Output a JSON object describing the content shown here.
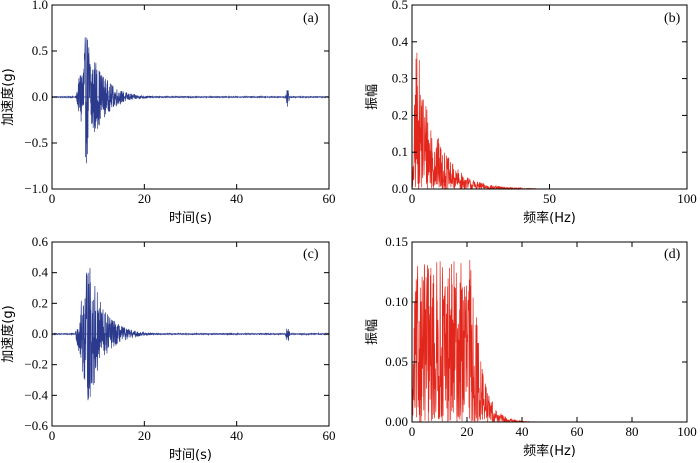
{
  "chart_data": [
    {
      "id": "a",
      "type": "line",
      "panel_label": "(a)",
      "xlabel": "时间(s)",
      "ylabel": "加速度(g)",
      "xlim": [
        0,
        60
      ],
      "ylim": [
        -1.0,
        1.0
      ],
      "xticks": [
        0,
        20,
        40,
        60
      ],
      "xtick_labels": [
        "0",
        "20",
        "40",
        "60"
      ],
      "yticks": [
        -1.0,
        -0.5,
        0.0,
        0.5,
        1.0
      ],
      "ytick_labels": [
        "−1.0",
        "−0.5",
        "0.0",
        "0.5",
        "1.0"
      ],
      "color": "#2b3a8c",
      "signal": {
        "start": 5.2,
        "peak_time": 7.5,
        "end": 22,
        "peak": 0.75,
        "trough": -0.74,
        "spike_time": 51.0,
        "spike_amp": 0.12,
        "duration": 60
      }
    },
    {
      "id": "b",
      "type": "area",
      "panel_label": "(b)",
      "xlabel": "频率(Hz)",
      "ylabel": "振幅",
      "xlim": [
        0,
        100
      ],
      "ylim": [
        0,
        0.5
      ],
      "xticks": [
        0,
        50,
        100
      ],
      "xtick_labels": [
        "0",
        "50",
        "100"
      ],
      "yticks": [
        0,
        0.1,
        0.2,
        0.3,
        0.4,
        0.5
      ],
      "ytick_labels": [
        "0.0",
        "0.1",
        "0.2",
        "0.3",
        "0.4",
        "0.5"
      ],
      "color": "#e3261b",
      "spectrum": {
        "peak": 0.41,
        "peak_freq": 1.5,
        "decay_to": 30,
        "tail_end": 45
      }
    },
    {
      "id": "c",
      "type": "line",
      "panel_label": "(c)",
      "xlabel": "时间(s)",
      "ylabel": "加速度(g)",
      "xlim": [
        0,
        60
      ],
      "ylim": [
        -0.6,
        0.6
      ],
      "xticks": [
        0,
        20,
        40,
        60
      ],
      "xtick_labels": [
        "0",
        "20",
        "40",
        "60"
      ],
      "yticks": [
        -0.6,
        -0.4,
        -0.2,
        0.0,
        0.2,
        0.4,
        0.6
      ],
      "ytick_labels": [
        "−0.6",
        "−0.4",
        "−0.2",
        "0.0",
        "0.2",
        "0.4",
        "0.6"
      ],
      "color": "#2b3a8c",
      "signal": {
        "start": 5.0,
        "peak_time": 8.0,
        "end": 25,
        "peak": 0.49,
        "trough": -0.48,
        "spike_time": 51.0,
        "spike_amp": 0.08,
        "duration": 60
      }
    },
    {
      "id": "d",
      "type": "area",
      "panel_label": "(d)",
      "xlabel": "频率(Hz)",
      "ylabel": "振幅",
      "xlim": [
        0,
        100
      ],
      "ylim": [
        0,
        0.15
      ],
      "xticks": [
        0,
        20,
        40,
        60,
        80,
        100
      ],
      "xtick_labels": [
        "0",
        "20",
        "40",
        "60",
        "80",
        "100"
      ],
      "yticks": [
        0,
        0.05,
        0.1,
        0.15
      ],
      "ytick_labels": [
        "0.00",
        "0.05",
        "0.10",
        "0.15"
      ],
      "color": "#e3261b",
      "spectrum": {
        "peak": 0.135,
        "peak_freq": 3,
        "decay_to": 30,
        "tail_end": 45,
        "broad": true
      }
    }
  ]
}
